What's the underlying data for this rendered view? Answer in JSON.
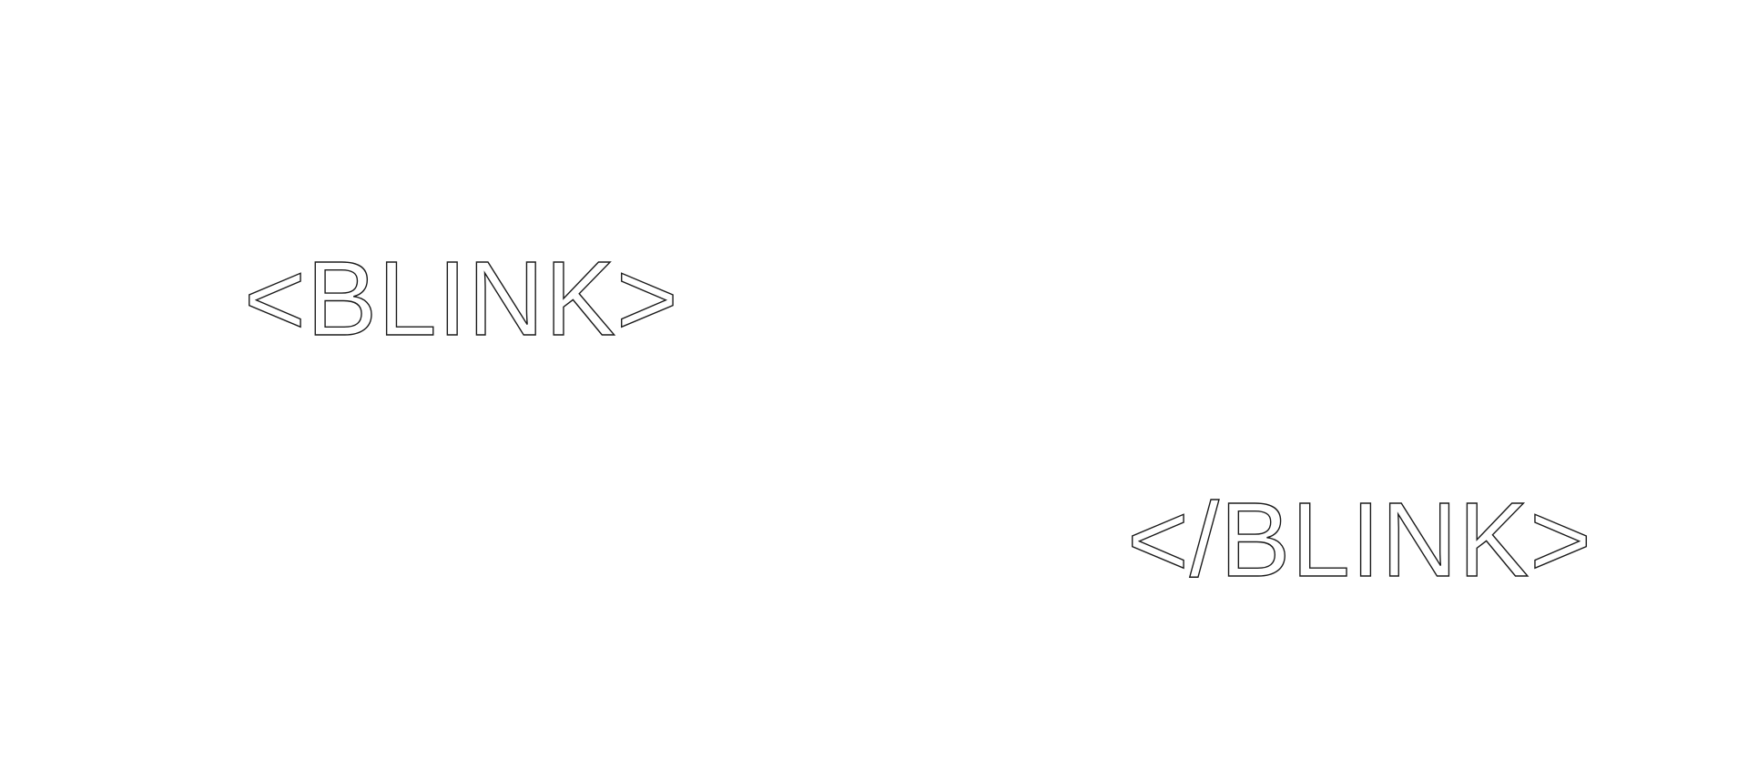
{
  "canvas": {
    "background_color": "#ffffff",
    "outline_color": "#1a1a1a"
  },
  "texts": {
    "open_tag": "<BLINK>",
    "close_tag": "</BLINK>"
  }
}
